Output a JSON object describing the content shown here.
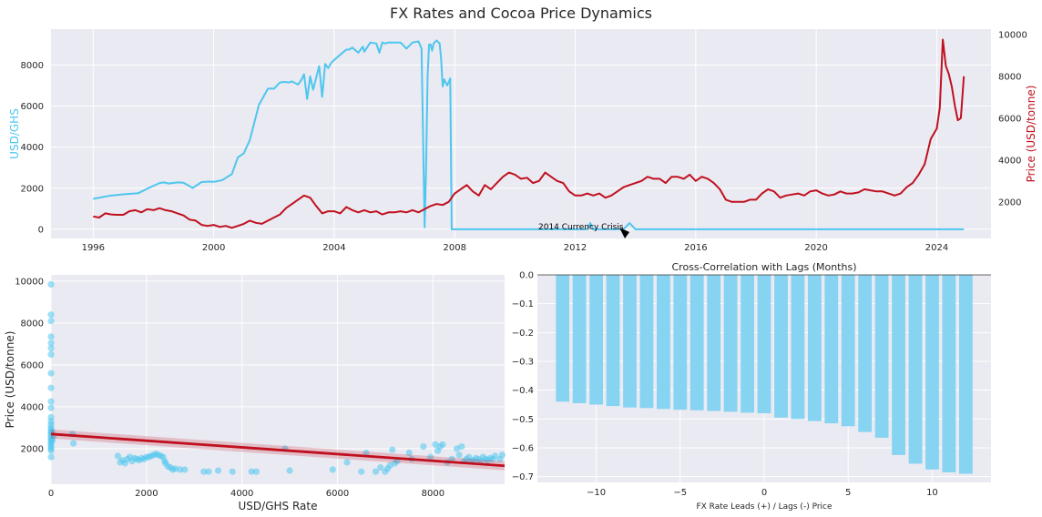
{
  "suptitle": "FX Rates and Cocoa Price Dynamics",
  "colors": {
    "fx": "#4ec6ee",
    "price": "#c0101f",
    "bar": "#87d3f2",
    "axes_bg": "#eaeaf2",
    "grid": "#ffffff"
  },
  "chart_data": [
    {
      "type": "line",
      "title": "",
      "xlabel": "",
      "ylabel_left": "USD/GHS",
      "ylabel_right": "Price (USD/tonne)",
      "x_ticks": [
        "1996",
        "2000",
        "2004",
        "2008",
        "2012",
        "2016",
        "2020",
        "2024"
      ],
      "y_left_ticks": [
        "0",
        "2000",
        "4000",
        "6000",
        "8000"
      ],
      "y_right_ticks": [
        "2000",
        "4000",
        "6000",
        "8000",
        "10000"
      ],
      "xlim": [
        1994.6,
        2025.8
      ],
      "ylim_left": [
        -450,
        9750
      ],
      "ylim_right": [
        250,
        10250
      ],
      "annotation": {
        "text": "2014 Currency Crisis",
        "xy": [
          2013.8,
          0
        ],
        "text_xy": [
          2011.0,
          60
        ]
      },
      "series": [
        {
          "name": "USD/GHS",
          "axis": "left",
          "x": [
            1996.0,
            1996.5,
            1997.0,
            1997.5,
            1997.9,
            1998.2,
            1998.35,
            1998.5,
            1998.8,
            1999.0,
            1999.3,
            1999.6,
            1999.85,
            2000.0,
            2000.15,
            2000.3,
            2000.45,
            2000.6,
            2000.8,
            2001.0,
            2001.2,
            2001.5,
            2001.8,
            2002.0,
            2002.2,
            2002.35,
            2002.5,
            2002.6,
            2002.8,
            2002.9,
            2003.0,
            2003.1,
            2003.2,
            2003.3,
            2003.5,
            2003.6,
            2003.7,
            2003.8,
            2003.9,
            2004.0,
            2004.2,
            2004.4,
            2004.5,
            2004.6,
            2004.8,
            2004.95,
            2005.0,
            2005.2,
            2005.4,
            2005.5,
            2005.6,
            2005.7,
            2005.8,
            2006.0,
            2006.2,
            2006.4,
            2006.6,
            2006.8,
            2006.9,
            2007.0,
            2007.05,
            2007.1,
            2007.15,
            2007.2,
            2007.25,
            2007.3,
            2007.4,
            2007.5,
            2007.55,
            2007.6,
            2007.65,
            2007.75,
            2007.85,
            2007.9,
            2008.0,
            2008.2,
            2008.4,
            2009.0,
            2012.0,
            2012.4,
            2012.5,
            2012.6,
            2013.0,
            2013.6,
            2013.8,
            2014.0,
            2016.0,
            2020.0,
            2024.0,
            2024.9
          ],
          "values": [
            1480,
            1620,
            1700,
            1760,
            2050,
            2250,
            2280,
            2230,
            2280,
            2270,
            2010,
            2300,
            2320,
            2310,
            2350,
            2400,
            2550,
            2680,
            3500,
            3700,
            4350,
            6050,
            6850,
            6850,
            7150,
            7180,
            7150,
            7200,
            7050,
            7250,
            7550,
            6350,
            7450,
            6800,
            7950,
            6450,
            8050,
            7850,
            8100,
            8250,
            8500,
            8750,
            8750,
            8850,
            8600,
            8900,
            8650,
            9100,
            9050,
            8600,
            9100,
            9050,
            9100,
            9100,
            9100,
            8800,
            9100,
            9150,
            8800,
            100,
            3000,
            7500,
            9000,
            9000,
            8700,
            9050,
            9200,
            9050,
            8300,
            6950,
            7300,
            7000,
            7350,
            0,
            0,
            0,
            0,
            0,
            0,
            0,
            300,
            0,
            0,
            0,
            300,
            0,
            0,
            0,
            0,
            0
          ]
        },
        {
          "name": "Price",
          "axis": "right",
          "x": [
            1996.0,
            1996.2,
            1996.4,
            1996.6,
            1996.8,
            1997.0,
            1997.2,
            1997.4,
            1997.6,
            1997.8,
            1998.0,
            1998.2,
            1998.4,
            1998.6,
            1998.8,
            1999.0,
            1999.2,
            1999.4,
            1999.6,
            1999.8,
            2000.0,
            2000.2,
            2000.4,
            2000.6,
            2000.8,
            2001.0,
            2001.2,
            2001.4,
            2001.6,
            2001.8,
            2002.0,
            2002.2,
            2002.4,
            2002.6,
            2002.8,
            2003.0,
            2003.2,
            2003.4,
            2003.6,
            2003.8,
            2004.0,
            2004.2,
            2004.4,
            2004.6,
            2004.8,
            2005.0,
            2005.2,
            2005.4,
            2005.6,
            2005.8,
            2006.0,
            2006.2,
            2006.4,
            2006.6,
            2006.8,
            2007.0,
            2007.2,
            2007.4,
            2007.6,
            2007.8,
            2008.0,
            2008.2,
            2008.4,
            2008.6,
            2008.8,
            2009.0,
            2009.2,
            2009.4,
            2009.6,
            2009.8,
            2010.0,
            2010.2,
            2010.4,
            2010.6,
            2010.8,
            2011.0,
            2011.2,
            2011.4,
            2011.6,
            2011.8,
            2012.0,
            2012.2,
            2012.4,
            2012.6,
            2012.8,
            2013.0,
            2013.2,
            2013.4,
            2013.6,
            2013.8,
            2014.0,
            2014.2,
            2014.4,
            2014.6,
            2014.8,
            2015.0,
            2015.2,
            2015.4,
            2015.6,
            2015.8,
            2016.0,
            2016.2,
            2016.4,
            2016.6,
            2016.8,
            2017.0,
            2017.2,
            2017.4,
            2017.6,
            2017.8,
            2018.0,
            2018.2,
            2018.4,
            2018.6,
            2018.8,
            2019.0,
            2019.2,
            2019.4,
            2019.6,
            2019.8,
            2020.0,
            2020.2,
            2020.4,
            2020.6,
            2020.8,
            2021.0,
            2021.2,
            2021.4,
            2021.6,
            2021.8,
            2022.0,
            2022.2,
            2022.4,
            2022.6,
            2022.8,
            2023.0,
            2023.2,
            2023.4,
            2023.6,
            2023.8,
            2024.0,
            2024.1,
            2024.2,
            2024.3,
            2024.4,
            2024.5,
            2024.6,
            2024.7,
            2024.8,
            2024.9
          ],
          "values": [
            1300,
            1250,
            1450,
            1400,
            1380,
            1380,
            1550,
            1600,
            1500,
            1650,
            1600,
            1700,
            1600,
            1550,
            1450,
            1350,
            1150,
            1100,
            900,
            850,
            900,
            800,
            850,
            760,
            850,
            950,
            1100,
            1000,
            950,
            1100,
            1250,
            1400,
            1700,
            1900,
            2100,
            2300,
            2200,
            1800,
            1450,
            1550,
            1550,
            1450,
            1750,
            1600,
            1500,
            1600,
            1500,
            1550,
            1400,
            1500,
            1500,
            1550,
            1500,
            1600,
            1500,
            1650,
            1800,
            1900,
            1850,
            2000,
            2400,
            2600,
            2800,
            2500,
            2300,
            2800,
            2600,
            2900,
            3200,
            3400,
            3300,
            3100,
            3150,
            2900,
            3000,
            3400,
            3200,
            3000,
            2900,
            2500,
            2300,
            2300,
            2400,
            2300,
            2400,
            2200,
            2300,
            2500,
            2700,
            2800,
            2900,
            3000,
            3200,
            3100,
            3100,
            2900,
            3200,
            3200,
            3100,
            3300,
            3000,
            3200,
            3100,
            2900,
            2600,
            2100,
            2000,
            2000,
            2000,
            2100,
            2100,
            2400,
            2600,
            2500,
            2200,
            2300,
            2350,
            2400,
            2300,
            2500,
            2550,
            2400,
            2300,
            2350,
            2500,
            2400,
            2400,
            2450,
            2600,
            2550,
            2500,
            2500,
            2400,
            2300,
            2400,
            2700,
            2900,
            3300,
            3800,
            5000,
            5500,
            6500,
            9750,
            8500,
            8100,
            7500,
            6600,
            5900,
            6000,
            8000
          ]
        }
      ]
    },
    {
      "type": "scatter",
      "title": "",
      "xlabel": "USD/GHS Rate",
      "ylabel": "Price (USD/tonne)",
      "x_ticks": [
        "0",
        "2000",
        "4000",
        "6000",
        "8000"
      ],
      "y_ticks": [
        "2000",
        "4000",
        "6000",
        "8000",
        "10000"
      ],
      "xlim": [
        0,
        9500
      ],
      "ylim": [
        300,
        10300
      ],
      "regression": {
        "x": [
          0,
          9500
        ],
        "y": [
          2700,
          1180
        ]
      },
      "points": [
        [
          0,
          9850
        ],
        [
          0,
          8400
        ],
        [
          0,
          8100
        ],
        [
          0,
          7350
        ],
        [
          0,
          7050
        ],
        [
          0,
          6800
        ],
        [
          0,
          6500
        ],
        [
          0,
          5600
        ],
        [
          0,
          4900
        ],
        [
          0,
          4250
        ],
        [
          0,
          3950
        ],
        [
          0,
          3500
        ],
        [
          0,
          3300
        ],
        [
          0,
          3150
        ],
        [
          0,
          3000
        ],
        [
          0,
          2900
        ],
        [
          0,
          2800
        ],
        [
          0,
          2700
        ],
        [
          0,
          2600
        ],
        [
          0,
          2500
        ],
        [
          0,
          2400
        ],
        [
          0,
          2300
        ],
        [
          0,
          2200
        ],
        [
          0,
          2100
        ],
        [
          0,
          2000
        ],
        [
          0,
          1900
        ],
        [
          0,
          1600
        ],
        [
          20,
          2800
        ],
        [
          30,
          2400
        ],
        [
          50,
          2600
        ],
        [
          450,
          2700
        ],
        [
          470,
          2250
        ],
        [
          1400,
          1650
        ],
        [
          1450,
          1350
        ],
        [
          1500,
          1450
        ],
        [
          1550,
          1300
        ],
        [
          1600,
          1500
        ],
        [
          1650,
          1600
        ],
        [
          1700,
          1400
        ],
        [
          1750,
          1550
        ],
        [
          1800,
          1500
        ],
        [
          1850,
          1450
        ],
        [
          1900,
          1550
        ],
        [
          1950,
          1500
        ],
        [
          2000,
          1600
        ],
        [
          2050,
          1600
        ],
        [
          2100,
          1650
        ],
        [
          2150,
          1700
        ],
        [
          2200,
          1750
        ],
        [
          2250,
          1700
        ],
        [
          2300,
          1650
        ],
        [
          2350,
          1600
        ],
        [
          2380,
          1400
        ],
        [
          2400,
          1300
        ],
        [
          2450,
          1150
        ],
        [
          2500,
          1100
        ],
        [
          2550,
          1000
        ],
        [
          2600,
          1050
        ],
        [
          2700,
          1000
        ],
        [
          2800,
          1000
        ],
        [
          3200,
          900
        ],
        [
          3300,
          900
        ],
        [
          3500,
          950
        ],
        [
          3800,
          900
        ],
        [
          4200,
          900
        ],
        [
          4300,
          900
        ],
        [
          4900,
          2000
        ],
        [
          5000,
          950
        ],
        [
          5900,
          1000
        ],
        [
          6200,
          1350
        ],
        [
          6500,
          900
        ],
        [
          6600,
          1800
        ],
        [
          6800,
          900
        ],
        [
          6900,
          1100
        ],
        [
          7000,
          900
        ],
        [
          7050,
          1050
        ],
        [
          7100,
          1200
        ],
        [
          7150,
          1950
        ],
        [
          7200,
          1300
        ],
        [
          7250,
          1400
        ],
        [
          7500,
          1800
        ],
        [
          7550,
          1500
        ],
        [
          7800,
          2100
        ],
        [
          7950,
          1600
        ],
        [
          8050,
          2200
        ],
        [
          8100,
          1900
        ],
        [
          8150,
          2100
        ],
        [
          8200,
          2200
        ],
        [
          8300,
          1350
        ],
        [
          8400,
          1500
        ],
        [
          8500,
          2000
        ],
        [
          8550,
          1700
        ],
        [
          8600,
          2100
        ],
        [
          8650,
          1400
        ],
        [
          8700,
          1500
        ],
        [
          8750,
          1600
        ],
        [
          8800,
          1400
        ],
        [
          8850,
          1450
        ],
        [
          8900,
          1550
        ],
        [
          8950,
          1500
        ],
        [
          9000,
          1400
        ],
        [
          9050,
          1600
        ],
        [
          9100,
          1500
        ],
        [
          9150,
          1450
        ],
        [
          9200,
          1550
        ],
        [
          9250,
          1500
        ],
        [
          9300,
          1650
        ],
        [
          9400,
          1500
        ],
        [
          9450,
          1700
        ]
      ]
    },
    {
      "type": "bar",
      "title": "Cross-Correlation with Lags (Months)",
      "xlabel": "FX Rate Leads (+) / Lags (-) Price",
      "ylabel": "",
      "x_ticks": [
        "−10",
        "−5",
        "0",
        "5",
        "10"
      ],
      "y_ticks": [
        "0.0",
        "−0.1",
        "−0.2",
        "−0.3",
        "−0.4",
        "−0.5",
        "−0.6",
        "−0.7"
      ],
      "xlim": [
        -13.5,
        13.5
      ],
      "ylim": [
        -0.72,
        0.0
      ],
      "categories": [
        -12,
        -11,
        -10,
        -9,
        -8,
        -7,
        -6,
        -5,
        -4,
        -3,
        -2,
        -1,
        0,
        1,
        2,
        3,
        4,
        5,
        6,
        7,
        8,
        9,
        10,
        11,
        12
      ],
      "values": [
        -0.44,
        -0.445,
        -0.45,
        -0.455,
        -0.46,
        -0.462,
        -0.465,
        -0.468,
        -0.47,
        -0.472,
        -0.475,
        -0.478,
        -0.48,
        -0.495,
        -0.5,
        -0.507,
        -0.515,
        -0.525,
        -0.545,
        -0.565,
        -0.625,
        -0.655,
        -0.675,
        -0.685,
        -0.69
      ]
    }
  ]
}
